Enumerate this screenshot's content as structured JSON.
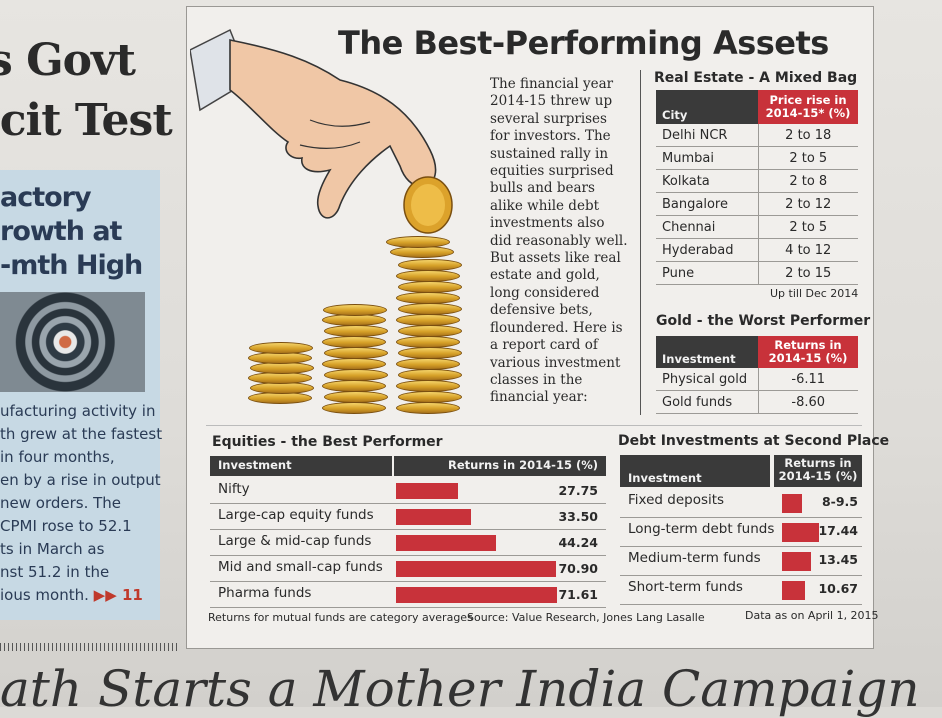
{
  "left_column": {
    "headline_line1": "s Govt",
    "headline_line2": "icit Test",
    "sub_line1": "actory",
    "sub_line2": "rowth at",
    "sub_line3": "-mth High",
    "body_lines": [
      "ufacturing activity in",
      "th grew at the fastest",
      "in four months,",
      "en by a rise in output",
      "new orders. The",
      "CPMI rose to 52.1",
      "ts in March as",
      "nst 51.2 in the",
      "ious month."
    ],
    "more_link": "▶▶ 11"
  },
  "bottom_headline": "ath Starts a Mother India Campaign",
  "infographic": {
    "title": "The Best-Performing Assets",
    "intro": "The financial year 2014-15 threw up several surprises for investors. The sustained rally in equities surprised bulls and bears alike while debt investments also did reasonably well. But assets like real estate and gold, long considered defensive bets, floundered. Here is a report card of various investment classes in the financial year:",
    "real_estate": {
      "title": "Real Estate - A Mixed Bag",
      "col_city": "City",
      "col_change": "Price rise in 2014-15* (%)",
      "rows": [
        {
          "city": "Delhi NCR",
          "value": "2 to 18"
        },
        {
          "city": "Mumbai",
          "value": "2 to 5"
        },
        {
          "city": "Kolkata",
          "value": "2 to 8"
        },
        {
          "city": "Bangalore",
          "value": "2 to 12"
        },
        {
          "city": "Chennai",
          "value": "2 to 5"
        },
        {
          "city": "Hyderabad",
          "value": "4 to 12"
        },
        {
          "city": "Pune",
          "value": "2 to 15"
        }
      ],
      "note": "Up till Dec 2014"
    },
    "gold": {
      "title": "Gold - the Worst Performer",
      "col_investment": "Investment",
      "col_returns": "Returns in 2014-15 (%)",
      "rows": [
        {
          "name": "Physical gold",
          "value": "-6.11"
        },
        {
          "name": "Gold funds",
          "value": "-8.60"
        }
      ]
    },
    "equities": {
      "title": "Equities - the Best Performer",
      "col_investment": "Investment",
      "col_returns": "Returns in 2014-15 (%)",
      "rows": [
        {
          "name": "Nifty",
          "value": 27.75,
          "label": "27.75"
        },
        {
          "name": "Large-cap equity funds",
          "value": 33.5,
          "label": "33.50"
        },
        {
          "name": "Large & mid-cap funds",
          "value": 44.24,
          "label": "44.24"
        },
        {
          "name": "Mid and small-cap funds",
          "value": 70.9,
          "label": "70.90"
        },
        {
          "name": "Pharma funds",
          "value": 71.61,
          "label": "71.61"
        }
      ]
    },
    "debt": {
      "title": "Debt Investments at Second Place",
      "col_investment": "Investment",
      "col_returns": "Returns in 2014-15 (%)",
      "rows": [
        {
          "name": "Fixed deposits",
          "value": 9.5,
          "label": "8-9.5"
        },
        {
          "name": "Long-term debt funds",
          "value": 17.44,
          "label": "17.44"
        },
        {
          "name": "Medium-term funds",
          "value": 13.45,
          "label": "13.45"
        },
        {
          "name": "Short-term funds",
          "value": 10.67,
          "label": "10.67"
        }
      ]
    },
    "footer_note": "Returns for mutual funds are category averages",
    "source": "Source: Value Research, Jones Lang Lasalle",
    "data_date": "Data as on April 1, 2015"
  },
  "colors": {
    "accent_red": "#c8323a",
    "header_dark": "#3a3a3a",
    "coin_gold": "#d7a128"
  }
}
